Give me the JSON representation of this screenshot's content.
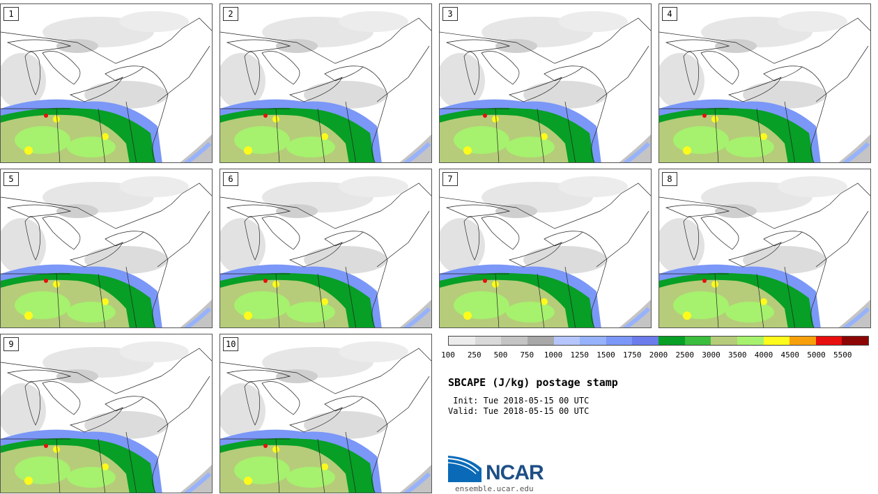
{
  "title": "SBCAPE (J/kg) postage stamp",
  "init": " Init: Tue 2018-05-15 00 UTC",
  "valid": "Valid: Tue 2018-05-15 00 UTC",
  "members": [
    "1",
    "2",
    "3",
    "4",
    "5",
    "6",
    "7",
    "8",
    "9",
    "10"
  ],
  "colorbar": {
    "colors": [
      "#ececec",
      "#d9d9d9",
      "#c4c4c4",
      "#a8a8a8",
      "#b6c6fc",
      "#97b2fc",
      "#7b97f7",
      "#6c7cec",
      "#079f25",
      "#3bbd3d",
      "#b6cc7a",
      "#a6f16e",
      "#fdfb1c",
      "#f7a00b",
      "#e80f0f",
      "#8c0505"
    ],
    "labels": [
      "100",
      "250",
      "500",
      "750",
      "1000",
      "1250",
      "1500",
      "1750",
      "2000",
      "2500",
      "3000",
      "3500",
      "4000",
      "4500",
      "5000",
      "5500"
    ]
  },
  "logo": {
    "name": "NCAR",
    "url": "ensemble.ucar.edu",
    "colors": {
      "blue": "#0a6ab8",
      "navy": "#1e4f86"
    }
  }
}
